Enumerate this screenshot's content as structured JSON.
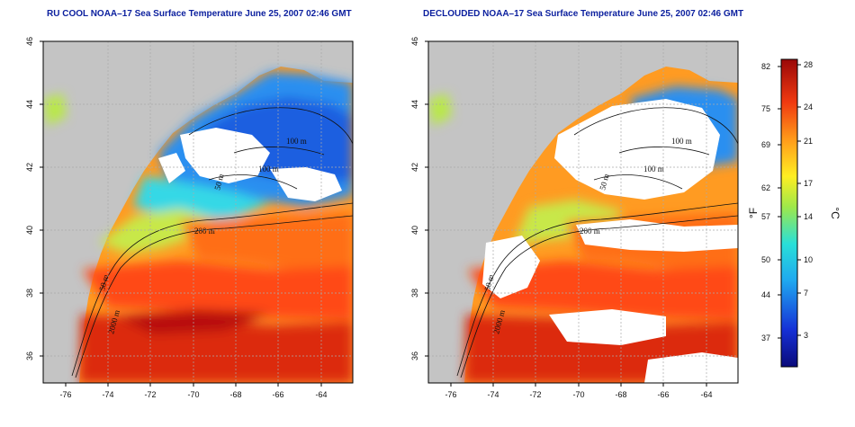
{
  "panels": [
    {
      "title": "RU COOL NOAA–17 Sea Surface Temperature June 25, 2007 02:46 GMT",
      "depth_labels": [
        "100 m",
        "100 m",
        "50 m",
        "200 m",
        "50 m",
        "2000 m"
      ]
    },
    {
      "title": "DECLOUDED NOAA–17 Sea Surface Temperature June 25, 2007 02:46 GMT",
      "depth_labels": [
        "100 m",
        "100 m",
        "50 m",
        "200 m",
        "50 m",
        "2000 m"
      ]
    }
  ],
  "axes": {
    "longitude_ticks": [
      "-76",
      "-74",
      "-72",
      "-70",
      "-68",
      "-66",
      "-64"
    ],
    "latitude_ticks": [
      "46",
      "44",
      "42",
      "40",
      "38",
      "36"
    ]
  },
  "colorbar": {
    "fahrenheit_ticks": [
      "82",
      "75",
      "69",
      "62",
      "57",
      "50",
      "44",
      "37"
    ],
    "celsius_ticks": [
      "28",
      "24",
      "21",
      "17",
      "14",
      "10",
      "7",
      "3"
    ],
    "fahrenheit_label": "°F",
    "celsius_label": "°C"
  },
  "colors": {
    "land": "#c4c4c4",
    "cloud_mask": "#ffffff",
    "title_text": "#0b1f9e",
    "warm": "#b40d0d",
    "cold": "#1e3fd8"
  }
}
